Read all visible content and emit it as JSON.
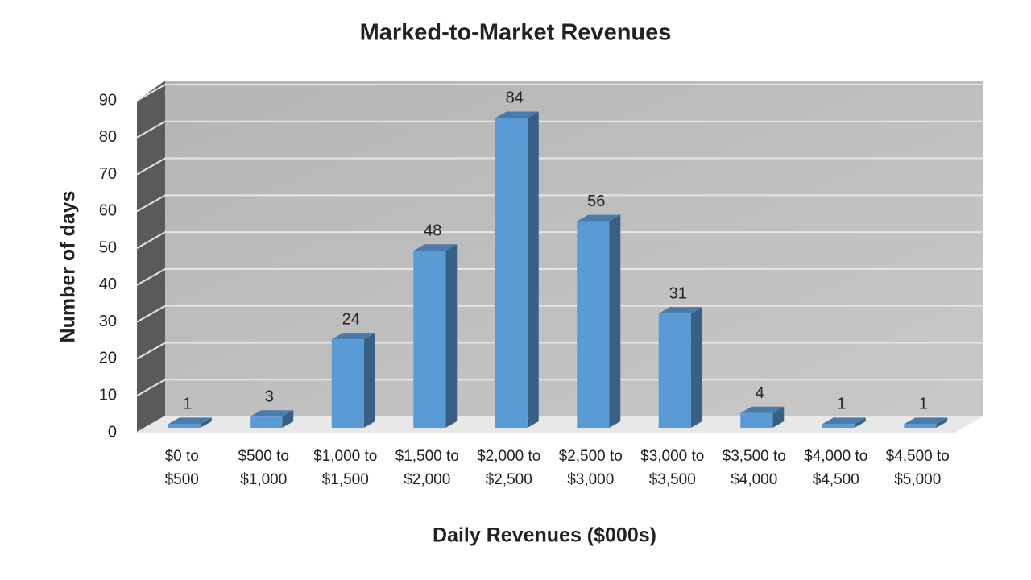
{
  "chart_data": {
    "type": "bar",
    "title": "Marked-to-Market Revenues",
    "x_label": "Daily Revenues ($000s)",
    "y_label": "Number of days",
    "categories": [
      "$0 to $500",
      "$500 to $1,000",
      "$1,000 to $1,500",
      "$1,500 to $2,000",
      "$2,000 to $2,500",
      "$2,500 to $3,000",
      "$3,000 to $3,500",
      "$3,500 to $4,000",
      "$4,000 to $4,500",
      "$4,500 to $5,000"
    ],
    "values": [
      1,
      3,
      24,
      48,
      84,
      56,
      31,
      4,
      1,
      1
    ],
    "color": "#5b9bd5",
    "ylim": [
      0,
      90
    ],
    "yticks": [
      0,
      10,
      20,
      30,
      40,
      50,
      60,
      70,
      80,
      90
    ],
    "grid": true
  }
}
